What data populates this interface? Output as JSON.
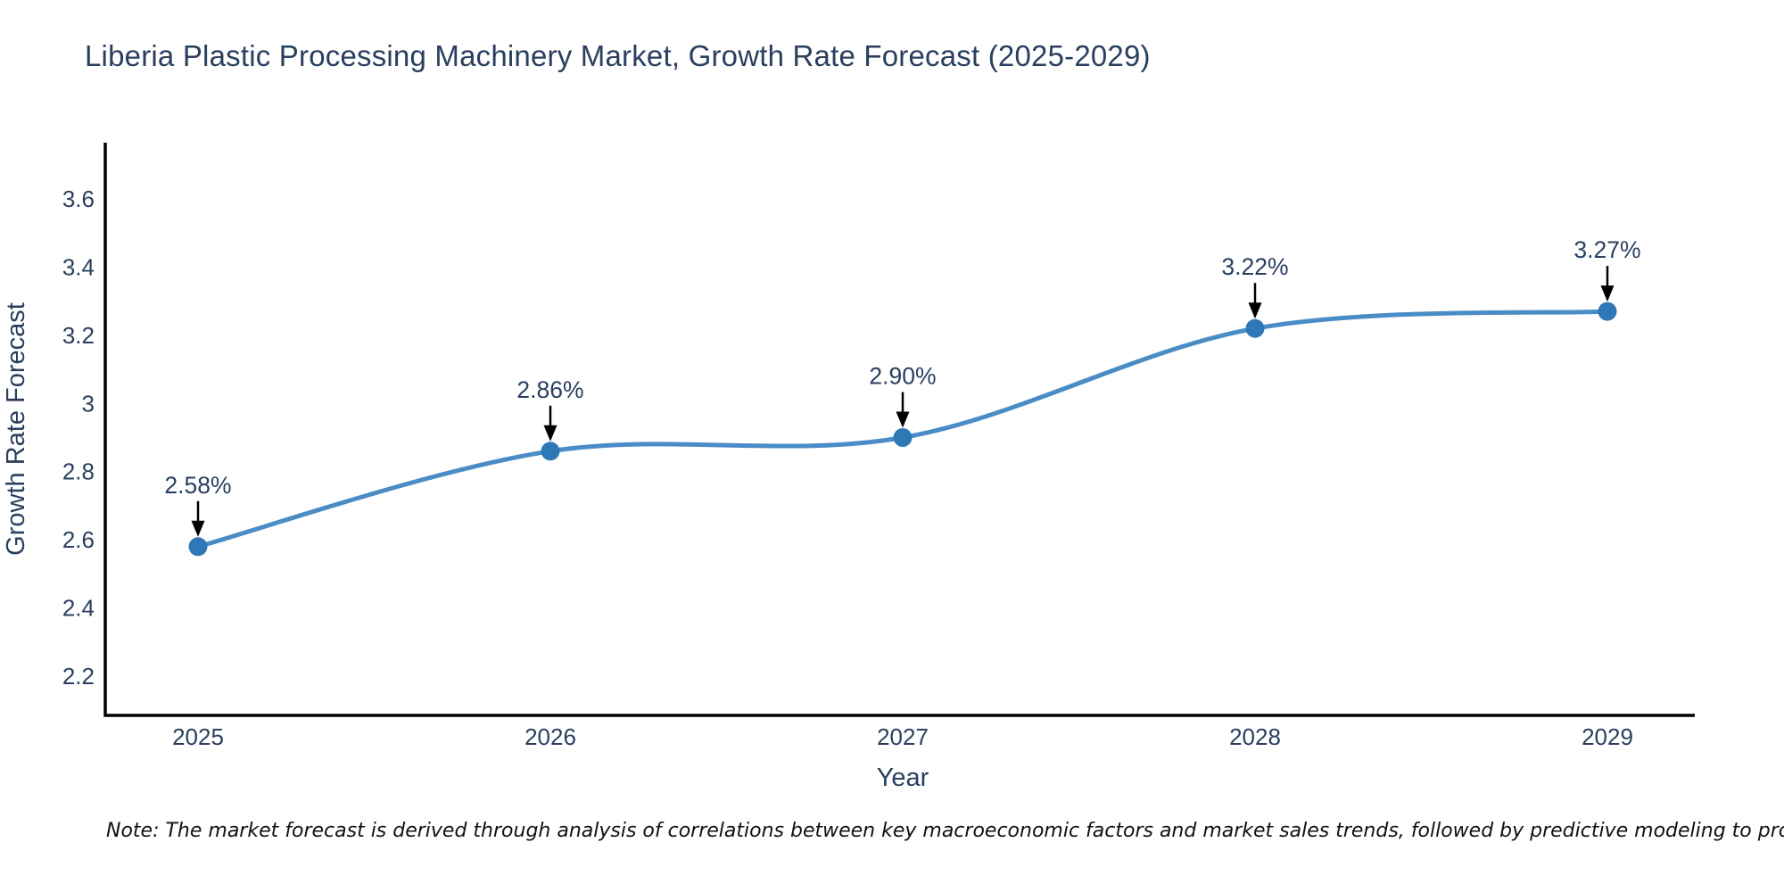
{
  "title": "Liberia Plastic Processing Machinery Market, Growth Rate Forecast (2025-2029)",
  "note": "Note: The market forecast is derived through analysis of correlations between key macroeconomic factors and market sales trends, followed by predictive modeling to project future sales",
  "chart_data": {
    "type": "line",
    "title": "Liberia Plastic Processing Machinery Market, Growth Rate Forecast (2025-2029)",
    "xlabel": "Year",
    "ylabel": "Growth Rate Forecast",
    "categories": [
      "2025",
      "2026",
      "2027",
      "2028",
      "2029"
    ],
    "values": [
      2.58,
      2.86,
      2.9,
      3.22,
      3.27
    ],
    "point_labels": [
      "2.58%",
      "2.86%",
      "2.90%",
      "3.22%",
      "3.27%"
    ],
    "series": [
      {
        "name": "Growth Rate Forecast",
        "values": [
          2.58,
          2.86,
          2.9,
          3.22,
          3.27
        ]
      }
    ],
    "ylim": [
      2.07,
      3.77
    ],
    "yticks": [
      3.6,
      3.4,
      3.2,
      3.0,
      2.8,
      2.6,
      2.4,
      2.2
    ],
    "ytick_labels": [
      "3.6",
      "3.4",
      "3.2",
      "3",
      "2.8",
      "2.6",
      "2.4",
      "2.2"
    ],
    "line_shape": "spline",
    "grid": false,
    "legend": "none",
    "annotations": "value labels with downward black arrows above each point",
    "colors": {
      "line": "#4a8cc6",
      "marker": "#2f78b8",
      "axis": "#000000",
      "text": "#2a3f5f",
      "annotation_arrow": "#000000",
      "background": "#ffffff"
    }
  }
}
